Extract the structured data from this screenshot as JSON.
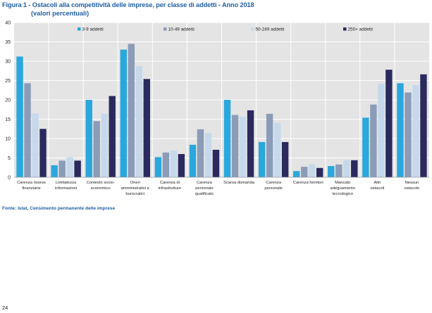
{
  "page": {
    "title": "Figura 1 - Ostacoli alla competitività delle imprese, per classe di addetti - Anno 2018",
    "subtitle": "(valori percentuali)",
    "source": "Fonte: Istat, Censimento permanente delle imprese",
    "page_number": "24"
  },
  "chart_data": {
    "type": "bar",
    "ylim": [
      0,
      40
    ],
    "yticks": [
      0,
      5,
      10,
      15,
      20,
      25,
      30,
      35,
      40
    ],
    "grid": true,
    "legend_position": "top",
    "categories": [
      [
        "Carenza risorse",
        "finanziarie"
      ],
      [
        "Limitatezza",
        "informazioni"
      ],
      [
        "Contesto socio-",
        "economico"
      ],
      [
        "Oneri",
        "amministrativi e",
        "burocratici"
      ],
      [
        "Carenza di",
        "infrastrutture"
      ],
      [
        "Carenza",
        "personale",
        "qualificato"
      ],
      [
        "Scarsa domanda"
      ],
      [
        "Carenza",
        "personale"
      ],
      [
        "Carenza fornitori"
      ],
      [
        "Mancato",
        "adeguamento",
        "tecnologico"
      ],
      [
        "Altri",
        "ostacoli"
      ],
      [
        "Nessun",
        "ostacolo"
      ]
    ],
    "series": [
      {
        "name": "3-9 addetti",
        "color": "#2aa7dd",
        "values": [
          31.2,
          3.1,
          20.0,
          33.0,
          5.2,
          8.4,
          20.0,
          9.1,
          1.6,
          2.9,
          15.4,
          24.3
        ]
      },
      {
        "name": "10-49 addetti",
        "color": "#8b9cb8",
        "values": [
          24.3,
          4.3,
          14.5,
          34.5,
          6.4,
          12.4,
          16.1,
          16.4,
          2.7,
          3.3,
          18.8,
          21.9
        ]
      },
      {
        "name": "50-249 addetti",
        "color": "#c6d9ec",
        "values": [
          16.5,
          5.2,
          16.4,
          28.7,
          6.9,
          11.4,
          15.7,
          14.1,
          3.4,
          4.5,
          24.2,
          23.8
        ]
      },
      {
        "name": "250+ addetti",
        "color": "#2a2a5e",
        "values": [
          12.5,
          4.3,
          21.0,
          25.4,
          6.0,
          7.1,
          17.3,
          9.1,
          2.4,
          4.4,
          27.8,
          26.6
        ]
      }
    ]
  }
}
